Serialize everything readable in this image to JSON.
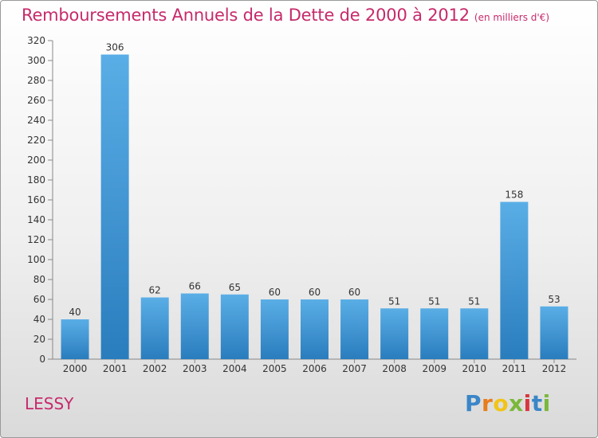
{
  "title": "Remboursements Annuels de la Dette de 2000 à 2012",
  "unit": "(en milliers d'€)",
  "commune": "LESSY",
  "brand": {
    "letters": [
      "P",
      "r",
      "o",
      "x",
      "i",
      "t",
      "i"
    ],
    "colors": [
      "#3a86c8",
      "#e87d1e",
      "#f0c419",
      "#7ab83a",
      "#d8363d",
      "#3a86c8",
      "#7ab83a"
    ]
  },
  "chart_data": {
    "type": "bar",
    "categories": [
      "2000",
      "2001",
      "2002",
      "2003",
      "2004",
      "2005",
      "2006",
      "2007",
      "2008",
      "2009",
      "2010",
      "2011",
      "2012"
    ],
    "values": [
      40,
      306,
      62,
      66,
      65,
      60,
      60,
      60,
      51,
      51,
      51,
      158,
      53
    ],
    "ylim": [
      0,
      320
    ],
    "yticks": [
      0,
      20,
      40,
      60,
      80,
      100,
      120,
      140,
      160,
      180,
      200,
      220,
      240,
      260,
      280,
      300,
      320
    ],
    "xlabel": "",
    "ylabel": "",
    "grid": false,
    "bar_color": "#4da3e0",
    "bar_color_dark": "#2a7dbd",
    "data_labels": true
  }
}
